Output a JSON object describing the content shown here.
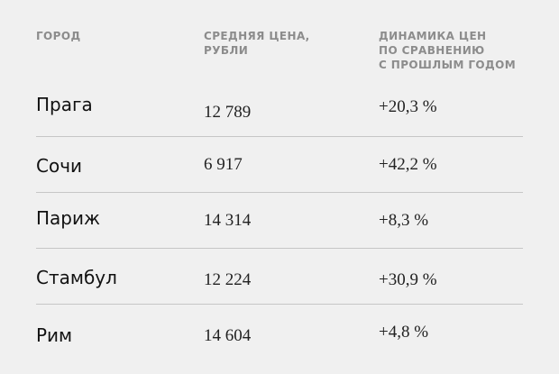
{
  "headers": {
    "city": "ГОРОД",
    "price": "СРЕДНЯЯ ЦЕНА,\nРУБЛИ",
    "dynamics": "ДИНАМИКА ЦЕН\nПО СРАВНЕНИЮ\nС ПРОШЛЫМ ГОДОМ"
  },
  "rows": [
    {
      "city": "Прага",
      "price": "12 789",
      "change": "+20,3 %"
    },
    {
      "city": "Сочи",
      "price": "6 917",
      "change": "+42,2 %"
    },
    {
      "city": "Париж",
      "price": "14 314",
      "change": "+8,3 %"
    },
    {
      "city": "Стамбул",
      "price": "12 224",
      "change": "+30,9 %"
    },
    {
      "city": "Рим",
      "price": "14 604",
      "change": "+4,8 %"
    }
  ]
}
